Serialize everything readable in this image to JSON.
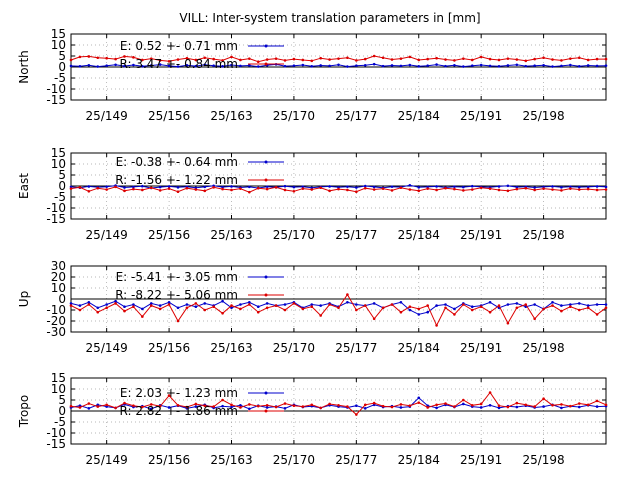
{
  "title": "VILL: Inter-system translation parameters in [mm]",
  "colors": {
    "E": "#0000cc",
    "R": "#dd0000",
    "zero": "#000000",
    "grid": "#a0a0a0"
  },
  "chart_data": [
    {
      "type": "line",
      "ylabel": "North",
      "yticks": [
        "15",
        "10",
        "5",
        "0",
        "-5",
        "-10",
        "-15"
      ],
      "ylim": [
        -15,
        15
      ],
      "xlim": [
        145,
        205
      ],
      "xtick_labels": [
        "25/149",
        "25/156",
        "25/163",
        "25/170",
        "25/177",
        "25/184",
        "25/191",
        "25/198"
      ],
      "xtick_positions": [
        149,
        156,
        163,
        170,
        177,
        184,
        191,
        198
      ],
      "grid": true,
      "legend_position": "top-left",
      "x": [
        145,
        146,
        147,
        148,
        149,
        150,
        151,
        152,
        153,
        154,
        155,
        156,
        157,
        158,
        159,
        160,
        161,
        162,
        163,
        164,
        165,
        166,
        167,
        168,
        169,
        170,
        171,
        172,
        173,
        174,
        175,
        176,
        177,
        178,
        179,
        180,
        181,
        182,
        183,
        184,
        185,
        186,
        187,
        188,
        189,
        190,
        191,
        192,
        193,
        194,
        195,
        196,
        197,
        198,
        199,
        200,
        201,
        202,
        203,
        204,
        205
      ],
      "series": [
        {
          "name": "E:  0.52 +- 0.71 mm",
          "color": "blue",
          "values": [
            0.5,
            0.3,
            0.8,
            0.2,
            0.6,
            1.0,
            0.4,
            0.9,
            0.3,
            0.7,
            1.1,
            0.5,
            0.2,
            0.8,
            0.4,
            1.0,
            0.6,
            0.3,
            0.9,
            0.5,
            0.7,
            0.2,
            0.8,
            1.2,
            0.4,
            0.6,
            0.9,
            0.3,
            0.7,
            0.5,
            1.0,
            0.2,
            0.6,
            0.8,
            1.3,
            0.4,
            0.7,
            0.5,
            0.9,
            0.3,
            0.6,
            1.1,
            0.4,
            0.8,
            0.2,
            0.6,
            0.9,
            0.5,
            0.3,
            0.7,
            1.0,
            0.4,
            0.6,
            0.8,
            0.2,
            0.5,
            0.9,
            0.3,
            0.7,
            0.5,
            0.6
          ]
        },
        {
          "name": "R:  3.47 +- 0.84 mm",
          "color": "red",
          "values": [
            3.2,
            4.6,
            4.8,
            4.2,
            4.0,
            3.6,
            4.8,
            4.4,
            3.2,
            3.8,
            3.0,
            2.6,
            3.4,
            4.0,
            3.2,
            4.2,
            3.6,
            3.0,
            4.6,
            3.2,
            3.8,
            2.4,
            3.4,
            3.8,
            3.0,
            3.6,
            3.2,
            2.8,
            4.0,
            3.4,
            3.8,
            4.2,
            3.0,
            3.6,
            5.0,
            4.2,
            3.4,
            3.8,
            4.6,
            3.2,
            3.6,
            4.0,
            3.4,
            3.0,
            3.8,
            3.2,
            4.6,
            3.6,
            3.2,
            3.8,
            3.4,
            2.8,
            3.6,
            4.2,
            3.4,
            3.0,
            3.8,
            4.2,
            3.2,
            3.6,
            3.6
          ]
        }
      ]
    },
    {
      "type": "line",
      "ylabel": "East",
      "yticks": [
        "15",
        "10",
        "5",
        "0",
        "-5",
        "-10",
        "-15"
      ],
      "ylim": [
        -15,
        15
      ],
      "xlim": [
        145,
        205
      ],
      "xtick_labels": [
        "25/149",
        "25/156",
        "25/163",
        "25/170",
        "25/177",
        "25/184",
        "25/191",
        "25/198"
      ],
      "xtick_positions": [
        149,
        156,
        163,
        170,
        177,
        184,
        191,
        198
      ],
      "grid": true,
      "legend_position": "top-left",
      "x": [
        145,
        146,
        147,
        148,
        149,
        150,
        151,
        152,
        153,
        154,
        155,
        156,
        157,
        158,
        159,
        160,
        161,
        162,
        163,
        164,
        165,
        166,
        167,
        168,
        169,
        170,
        171,
        172,
        173,
        174,
        175,
        176,
        177,
        178,
        179,
        180,
        181,
        182,
        183,
        184,
        185,
        186,
        187,
        188,
        189,
        190,
        191,
        192,
        193,
        194,
        195,
        196,
        197,
        198,
        199,
        200,
        201,
        202,
        203,
        204,
        205
      ],
      "series": [
        {
          "name": "E:  -0.38 +- 0.64 mm",
          "color": "blue",
          "values": [
            -0.4,
            -0.8,
            -0.2,
            -0.6,
            -0.3,
            0.2,
            -0.7,
            -0.4,
            -0.1,
            -0.9,
            -0.5,
            -0.2,
            -0.6,
            -0.3,
            -0.8,
            -0.4,
            0.1,
            -0.5,
            -0.2,
            -0.7,
            -0.4,
            -0.9,
            -0.3,
            -0.6,
            -0.1,
            -0.5,
            -0.3,
            -0.8,
            -0.4,
            -0.2,
            -0.6,
            -0.3,
            -0.7,
            0.0,
            -0.4,
            -0.8,
            -0.3,
            -0.5,
            0.3,
            -0.6,
            -0.4,
            -0.2,
            -0.7,
            -0.3,
            -0.5,
            -0.1,
            -0.4,
            -0.6,
            -0.2,
            0.1,
            -0.5,
            -0.3,
            -0.7,
            -0.4,
            -0.2,
            -0.6,
            -0.3,
            -0.5,
            -0.4,
            -0.2,
            -0.4
          ]
        },
        {
          "name": "R:  -1.56 +- 1.22 mm",
          "color": "red",
          "values": [
            -1.2,
            -0.6,
            -2.4,
            -1.0,
            -1.6,
            -0.4,
            -2.2,
            -1.4,
            -1.8,
            -0.8,
            -2.0,
            -1.2,
            -2.6,
            -1.0,
            -1.6,
            -2.2,
            -0.6,
            -1.4,
            -1.8,
            -1.2,
            -2.8,
            -1.0,
            -1.4,
            -0.6,
            -1.8,
            -2.4,
            -1.2,
            -1.6,
            -0.8,
            -2.2,
            -1.4,
            -1.8,
            -2.6,
            -1.0,
            -1.6,
            -1.2,
            -2.0,
            -0.8,
            -1.6,
            -2.2,
            -1.2,
            -1.8,
            -1.0,
            -1.4,
            -2.0,
            -1.6,
            -0.8,
            -1.2,
            -1.8,
            -2.2,
            -1.4,
            -1.0,
            -1.8,
            -1.2,
            -1.6,
            -2.0,
            -1.2,
            -1.6,
            -1.4,
            -1.8,
            -1.6
          ]
        }
      ]
    },
    {
      "type": "line",
      "ylabel": "Up",
      "yticks": [
        "30",
        "20",
        "10",
        "0",
        "-10",
        "-20",
        "-30"
      ],
      "ylim": [
        -30,
        30
      ],
      "xlim": [
        145,
        205
      ],
      "xtick_labels": [
        "25/149",
        "25/156",
        "25/163",
        "25/170",
        "25/177",
        "25/184",
        "25/191",
        "25/198"
      ],
      "xtick_positions": [
        149,
        156,
        163,
        170,
        177,
        184,
        191,
        198
      ],
      "grid": true,
      "legend_position": "top-left",
      "x": [
        145,
        146,
        147,
        148,
        149,
        150,
        151,
        152,
        153,
        154,
        155,
        156,
        157,
        158,
        159,
        160,
        161,
        162,
        163,
        164,
        165,
        166,
        167,
        168,
        169,
        170,
        171,
        172,
        173,
        174,
        175,
        176,
        177,
        178,
        179,
        180,
        181,
        182,
        183,
        184,
        185,
        186,
        187,
        188,
        189,
        190,
        191,
        192,
        193,
        194,
        195,
        196,
        197,
        198,
        199,
        200,
        201,
        202,
        203,
        204,
        205
      ],
      "series": [
        {
          "name": "E:  -5.41 +- 3.05 mm",
          "color": "blue",
          "values": [
            -4,
            -6,
            -3,
            -8,
            -5,
            -2,
            -7,
            -5,
            -9,
            -4,
            -6,
            -3,
            -8,
            -5,
            -7,
            -4,
            -6,
            -2,
            -8,
            -5,
            -3,
            -7,
            -4,
            -6,
            -5,
            -3,
            -8,
            -5,
            -6,
            -4,
            -7,
            -3,
            -5,
            -6,
            -4,
            -8,
            -5,
            -3,
            -10,
            -14,
            -12,
            -6,
            -5,
            -9,
            -4,
            -7,
            -6,
            -3,
            -8,
            -5,
            -4,
            -7,
            -5,
            -9,
            -3,
            -6,
            -5,
            -4,
            -6,
            -5,
            -5
          ]
        },
        {
          "name": "R:  -8.22 +- 5.06 mm",
          "color": "red",
          "values": [
            -6,
            -10,
            -5,
            -12,
            -8,
            -4,
            -11,
            -7,
            -16,
            -6,
            -9,
            -5,
            -20,
            -8,
            -4,
            -10,
            -7,
            -13,
            -6,
            -9,
            -5,
            -12,
            -8,
            -6,
            -10,
            -4,
            -9,
            -7,
            -15,
            -5,
            -8,
            4,
            -10,
            -6,
            -18,
            -8,
            -5,
            -12,
            -7,
            -9,
            -6,
            -24,
            -8,
            -14,
            -5,
            -10,
            -7,
            -12,
            -6,
            -22,
            -8,
            -5,
            -18,
            -9,
            -6,
            -11,
            -7,
            -10,
            -8,
            -14,
            -8
          ]
        }
      ]
    },
    {
      "type": "line",
      "ylabel": "Tropo",
      "yticks": [
        "15",
        "10",
        "5",
        "0",
        "-5",
        "-10",
        "-15"
      ],
      "ylim": [
        -15,
        15
      ],
      "xlim": [
        145,
        205
      ],
      "xtick_labels": [
        "25/149",
        "25/156",
        "25/163",
        "25/170",
        "25/177",
        "25/184",
        "25/191",
        "25/198"
      ],
      "xtick_positions": [
        149,
        156,
        163,
        170,
        177,
        184,
        191,
        198
      ],
      "grid": true,
      "legend_position": "top-left",
      "x": [
        145,
        146,
        147,
        148,
        149,
        150,
        151,
        152,
        153,
        154,
        155,
        156,
        157,
        158,
        159,
        160,
        161,
        162,
        163,
        164,
        165,
        166,
        167,
        168,
        169,
        170,
        171,
        172,
        173,
        174,
        175,
        176,
        177,
        178,
        179,
        180,
        181,
        182,
        183,
        184,
        185,
        186,
        187,
        188,
        189,
        190,
        191,
        192,
        193,
        194,
        195,
        196,
        197,
        198,
        199,
        200,
        201,
        202,
        203,
        204,
        205
      ],
      "series": [
        {
          "name": "E:  2.03 +- 1.23 mm",
          "color": "blue",
          "values": [
            1.6,
            2.4,
            1.2,
            2.8,
            2.0,
            1.4,
            3.0,
            1.8,
            2.2,
            1.0,
            2.6,
            1.6,
            2.4,
            1.2,
            2.0,
            2.8,
            1.4,
            2.2,
            1.8,
            2.6,
            1.0,
            2.4,
            1.6,
            2.0,
            1.2,
            2.8,
            1.8,
            2.2,
            1.4,
            2.6,
            2.0,
            1.6,
            2.4,
            1.2,
            2.8,
            1.8,
            2.2,
            1.6,
            2.0,
            6.0,
            2.4,
            1.4,
            2.8,
            1.8,
            3.2,
            2.0,
            1.6,
            2.6,
            1.4,
            2.2,
            1.8,
            2.4,
            1.6,
            2.0,
            2.8,
            1.4,
            2.2,
            1.8,
            2.6,
            2.0,
            2.2
          ]
        },
        {
          "name": "R:  2.82 +- 1.86 mm",
          "color": "red",
          "values": [
            2.2,
            1.6,
            3.4,
            2.0,
            2.8,
            1.4,
            3.6,
            2.4,
            1.8,
            3.0,
            2.2,
            7.0,
            2.6,
            1.8,
            3.2,
            2.4,
            2.0,
            5.0,
            2.8,
            1.6,
            3.0,
            2.2,
            2.6,
            1.8,
            3.4,
            2.4,
            2.0,
            2.8,
            1.4,
            3.2,
            2.6,
            2.0,
            -1.6,
            2.8,
            3.6,
            2.2,
            1.8,
            3.0,
            2.4,
            3.8,
            1.6,
            2.8,
            3.4,
            2.0,
            5.0,
            2.6,
            3.2,
            8.4,
            2.4,
            1.8,
            3.6,
            2.8,
            2.0,
            5.6,
            2.6,
            3.0,
            2.2,
            3.4,
            2.8,
            4.6,
            2.8
          ]
        }
      ]
    }
  ]
}
